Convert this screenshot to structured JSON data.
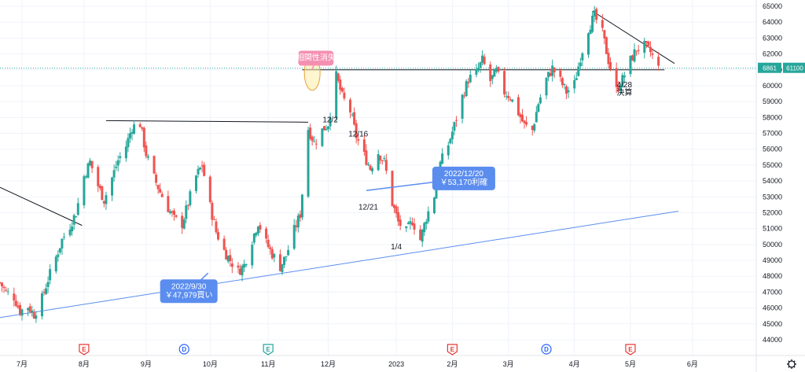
{
  "chart_data": {
    "type": "candlestick",
    "symbol_code": "6861",
    "last_price_label": "61100",
    "last_price": 61100,
    "ylim": [
      44000,
      65000
    ],
    "y_ticks": [
      44000,
      45000,
      46000,
      47000,
      48000,
      49000,
      50000,
      51000,
      52000,
      53000,
      54000,
      55000,
      56000,
      57000,
      58000,
      59000,
      60000,
      61000,
      62000,
      63000,
      64000,
      65000
    ],
    "x_ticks": [
      {
        "label": "7月",
        "date": "2022-07-01"
      },
      {
        "label": "8月",
        "date": "2022-08-01"
      },
      {
        "label": "9月",
        "date": "2022-09-01"
      },
      {
        "label": "10月",
        "date": "2022-10-03"
      },
      {
        "label": "11月",
        "date": "2022-11-01"
      },
      {
        "label": "12月",
        "date": "2022-12-01"
      },
      {
        "label": "2023",
        "date": "2023-01-04"
      },
      {
        "label": "2月",
        "date": "2023-02-01"
      },
      {
        "label": "3月",
        "date": "2023-03-01"
      },
      {
        "label": "4月",
        "date": "2023-04-03"
      },
      {
        "label": "5月",
        "date": "2023-05-01"
      },
      {
        "label": "6月",
        "date": "2023-06-01"
      }
    ],
    "x_range": [
      "2022-06-20",
      "2023-06-25"
    ],
    "closes": [
      {
        "date": "2022-06-20",
        "close": 47600
      },
      {
        "date": "2022-06-23",
        "close": 47000
      },
      {
        "date": "2022-06-27",
        "close": 46700
      },
      {
        "date": "2022-06-30",
        "close": 45800
      },
      {
        "date": "2022-07-04",
        "close": 46100
      },
      {
        "date": "2022-07-07",
        "close": 45600
      },
      {
        "date": "2022-07-11",
        "close": 46600
      },
      {
        "date": "2022-07-14",
        "close": 47800
      },
      {
        "date": "2022-07-18",
        "close": 49200
      },
      {
        "date": "2022-07-21",
        "close": 50300
      },
      {
        "date": "2022-07-25",
        "close": 51200
      },
      {
        "date": "2022-07-28",
        "close": 52000
      },
      {
        "date": "2022-08-01",
        "close": 54300
      },
      {
        "date": "2022-08-04",
        "close": 55200
      },
      {
        "date": "2022-08-08",
        "close": 53700
      },
      {
        "date": "2022-08-11",
        "close": 52800
      },
      {
        "date": "2022-08-15",
        "close": 54200
      },
      {
        "date": "2022-08-18",
        "close": 55300
      },
      {
        "date": "2022-08-22",
        "close": 56200
      },
      {
        "date": "2022-08-25",
        "close": 57400
      },
      {
        "date": "2022-08-29",
        "close": 57600
      },
      {
        "date": "2022-09-01",
        "close": 55700
      },
      {
        "date": "2022-09-05",
        "close": 54200
      },
      {
        "date": "2022-09-08",
        "close": 53300
      },
      {
        "date": "2022-09-12",
        "close": 52300
      },
      {
        "date": "2022-09-15",
        "close": 51600
      },
      {
        "date": "2022-09-19",
        "close": 51300
      },
      {
        "date": "2022-09-22",
        "close": 52600
      },
      {
        "date": "2022-09-26",
        "close": 54300
      },
      {
        "date": "2022-09-29",
        "close": 55000
      },
      {
        "date": "2022-10-03",
        "close": 52400
      },
      {
        "date": "2022-10-06",
        "close": 50800
      },
      {
        "date": "2022-10-10",
        "close": 49600
      },
      {
        "date": "2022-10-13",
        "close": 49000
      },
      {
        "date": "2022-10-17",
        "close": 48300
      },
      {
        "date": "2022-10-20",
        "close": 48700
      },
      {
        "date": "2022-10-24",
        "close": 50300
      },
      {
        "date": "2022-10-27",
        "close": 51400
      },
      {
        "date": "2022-10-31",
        "close": 50100
      },
      {
        "date": "2022-11-03",
        "close": 49400
      },
      {
        "date": "2022-11-07",
        "close": 48600
      },
      {
        "date": "2022-11-10",
        "close": 49300
      },
      {
        "date": "2022-11-14",
        "close": 50900
      },
      {
        "date": "2022-11-17",
        "close": 51900
      },
      {
        "date": "2022-11-21",
        "close": 57300
      },
      {
        "date": "2022-11-24",
        "close": 56400
      },
      {
        "date": "2022-11-28",
        "close": 57200
      },
      {
        "date": "2022-12-01",
        "close": 57600
      },
      {
        "date": "2022-12-05",
        "close": 60600
      },
      {
        "date": "2022-12-08",
        "close": 59300
      },
      {
        "date": "2022-12-12",
        "close": 58400
      },
      {
        "date": "2022-12-15",
        "close": 56800
      },
      {
        "date": "2022-12-19",
        "close": 55600
      },
      {
        "date": "2022-12-22",
        "close": 54800
      },
      {
        "date": "2022-12-26",
        "close": 55800
      },
      {
        "date": "2022-12-29",
        "close": 55200
      },
      {
        "date": "2023-01-02",
        "close": 52600
      },
      {
        "date": "2023-01-05",
        "close": 51400
      },
      {
        "date": "2023-01-09",
        "close": 50800
      },
      {
        "date": "2023-01-12",
        "close": 51500
      },
      {
        "date": "2023-01-16",
        "close": 50300
      },
      {
        "date": "2023-01-19",
        "close": 51700
      },
      {
        "date": "2023-01-23",
        "close": 53100
      },
      {
        "date": "2023-01-26",
        "close": 55100
      },
      {
        "date": "2023-01-30",
        "close": 56300
      },
      {
        "date": "2023-02-02",
        "close": 57500
      },
      {
        "date": "2023-02-06",
        "close": 59300
      },
      {
        "date": "2023-02-09",
        "close": 60400
      },
      {
        "date": "2023-02-13",
        "close": 60800
      },
      {
        "date": "2023-02-16",
        "close": 61600
      },
      {
        "date": "2023-02-20",
        "close": 60300
      },
      {
        "date": "2023-02-23",
        "close": 60900
      },
      {
        "date": "2023-02-27",
        "close": 59600
      },
      {
        "date": "2023-03-02",
        "close": 59300
      },
      {
        "date": "2023-03-06",
        "close": 58300
      },
      {
        "date": "2023-03-09",
        "close": 57500
      },
      {
        "date": "2023-03-13",
        "close": 57200
      },
      {
        "date": "2023-03-16",
        "close": 58900
      },
      {
        "date": "2023-03-20",
        "close": 60400
      },
      {
        "date": "2023-03-23",
        "close": 61100
      },
      {
        "date": "2023-03-27",
        "close": 60300
      },
      {
        "date": "2023-03-30",
        "close": 59600
      },
      {
        "date": "2023-04-03",
        "close": 60100
      },
      {
        "date": "2023-04-06",
        "close": 61800
      },
      {
        "date": "2023-04-10",
        "close": 63600
      },
      {
        "date": "2023-04-13",
        "close": 64400
      },
      {
        "date": "2023-04-17",
        "close": 63300
      },
      {
        "date": "2023-04-20",
        "close": 61600
      },
      {
        "date": "2023-04-24",
        "close": 59700
      },
      {
        "date": "2023-04-27",
        "close": 60400
      },
      {
        "date": "2023-05-01",
        "close": 61600
      },
      {
        "date": "2023-05-04",
        "close": 62300
      },
      {
        "date": "2023-05-08",
        "close": 62500
      },
      {
        "date": "2023-05-11",
        "close": 62100
      },
      {
        "date": "2023-05-15",
        "close": 61100
      }
    ],
    "trendlines": [
      {
        "color": "#131722",
        "from": {
          "date": "2022-06-20",
          "price": 53600
        },
        "to": {
          "date": "2022-07-31",
          "price": 51200
        }
      },
      {
        "color": "#131722",
        "from": {
          "date": "2022-08-12",
          "price": 57800
        },
        "to": {
          "date": "2022-11-21",
          "price": 57700
        }
      },
      {
        "color": "#131722",
        "from": {
          "date": "2022-11-18",
          "price": 61000
        },
        "to": {
          "date": "2023-05-18",
          "price": 61000
        }
      },
      {
        "color": "#131722",
        "from": {
          "date": "2023-04-12",
          "price": 64700
        },
        "to": {
          "date": "2023-05-23",
          "price": 61400
        }
      },
      {
        "color": "#5b8def",
        "from": {
          "date": "2022-06-20",
          "price": 45400
        },
        "to": {
          "date": "2023-05-25",
          "price": 52100
        }
      }
    ],
    "annotations": [
      {
        "text": "12/2",
        "date": "2022-12-02",
        "price": 57700
      },
      {
        "text": "12/16",
        "date": "2022-12-16",
        "price": 56800
      },
      {
        "text": "12/21",
        "date": "2022-12-21",
        "price": 52200
      },
      {
        "text": "1/4",
        "date": "2023-01-04",
        "price": 49700
      },
      {
        "text": "4/28",
        "date": "2023-04-28",
        "price": 59900
      },
      {
        "text": "決算",
        "date": "2023-04-28",
        "price": 59400
      }
    ],
    "callouts": [
      {
        "text_lines": [
          "2022/9/30",
          "￥47,979買い"
        ],
        "color": "#5b8def",
        "text_color": "#ffffff",
        "box": {
          "date": "2022-09-08",
          "price": 47800
        },
        "target": {
          "date": "2022-10-02",
          "price": 48200
        }
      },
      {
        "text_lines": [
          "2022/12/20",
          "￥53,170利確"
        ],
        "color": "#5b8def",
        "text_color": "#ffffff",
        "box": {
          "date": "2023-01-22",
          "price": 54900
        },
        "target": {
          "date": "2022-12-20",
          "price": 53400
        }
      },
      {
        "text_lines": [
          "相関性消失"
        ],
        "color": "#f48fb1",
        "text_color": "#ffffff",
        "box": {
          "date": "2022-11-16",
          "price": 62200
        },
        "target": {
          "date": "2022-11-23",
          "price": 61000
        }
      }
    ],
    "events": [
      {
        "type": "E",
        "date": "2022-08-01",
        "color": "#e53935"
      },
      {
        "type": "D",
        "date": "2022-09-20",
        "color": "#2962ff"
      },
      {
        "type": "E",
        "date": "2022-11-01",
        "color": "#26a69a"
      },
      {
        "type": "E",
        "date": "2023-02-01",
        "color": "#e53935"
      },
      {
        "type": "D",
        "date": "2023-03-20",
        "color": "#2962ff"
      },
      {
        "type": "E",
        "date": "2023-05-01",
        "color": "#e53935"
      }
    ],
    "colors": {
      "up": "#26a69a",
      "down": "#ef5350",
      "grid": "#f0f3fa",
      "axis": "#131722",
      "price_label": "#26a69a"
    }
  }
}
